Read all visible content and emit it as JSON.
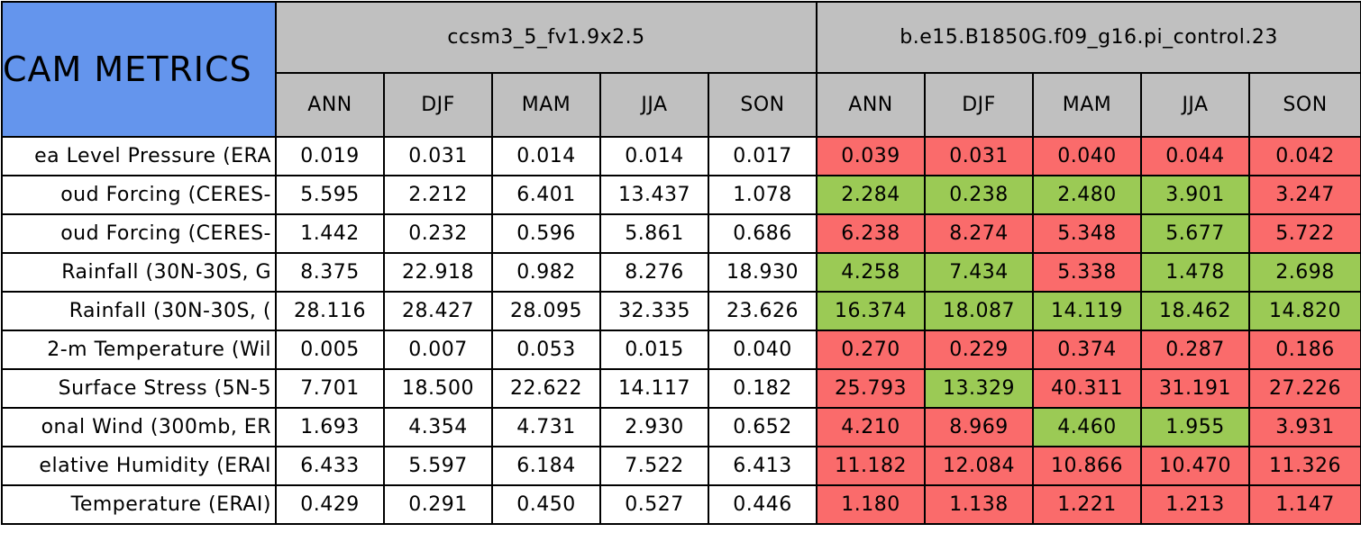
{
  "header": {
    "title": "CAM METRICS",
    "groups": [
      {
        "name": "ccsm3_5_fv1.9x2.5",
        "seasons": [
          "ANN",
          "DJF",
          "MAM",
          "JJA",
          "SON"
        ]
      },
      {
        "name": "b.e15.B1850G.f09_g16.pi_control.23",
        "seasons": [
          "ANN",
          "DJF",
          "MAM",
          "JJA",
          "SON"
        ]
      }
    ]
  },
  "table": {
    "rows": [
      {
        "label": "ea Level Pressure (ERA",
        "cells": [
          "0.019",
          "0.031",
          "0.014",
          "0.014",
          "0.017",
          "0.039",
          "0.031",
          "0.040",
          "0.044",
          "0.042"
        ],
        "colors": [
          "#fa6b6b",
          "#fa6b6b",
          "#fa6b6b",
          "#fa6b6b",
          "#fa6b6b"
        ]
      },
      {
        "label": "oud Forcing (CERES-",
        "cells": [
          "5.595",
          "2.212",
          "6.401",
          "13.437",
          "1.078",
          "2.284",
          "0.238",
          "2.480",
          "3.901",
          "3.247"
        ],
        "colors": [
          "#9bca55",
          "#9bca55",
          "#9bca55",
          "#9bca55",
          "#fa6b6b"
        ]
      },
      {
        "label": "oud Forcing (CERES-",
        "cells": [
          "1.442",
          "0.232",
          "0.596",
          "5.861",
          "0.686",
          "6.238",
          "8.274",
          "5.348",
          "5.677",
          "5.722"
        ],
        "colors": [
          "#fa6b6b",
          "#fa6b6b",
          "#fa6b6b",
          "#9bca55",
          "#fa6b6b"
        ]
      },
      {
        "label": "Rainfall (30N-30S, G",
        "cells": [
          "8.375",
          "22.918",
          "0.982",
          "8.276",
          "18.930",
          "4.258",
          "7.434",
          "5.338",
          "1.478",
          "2.698"
        ],
        "colors": [
          "#9bca55",
          "#9bca55",
          "#fa6b6b",
          "#9bca55",
          "#9bca55"
        ]
      },
      {
        "label": "Rainfall (30N-30S, (",
        "cells": [
          "28.116",
          "28.427",
          "28.095",
          "32.335",
          "23.626",
          "16.374",
          "18.087",
          "14.119",
          "18.462",
          "14.820"
        ],
        "colors": [
          "#9bca55",
          "#9bca55",
          "#9bca55",
          "#9bca55",
          "#9bca55"
        ]
      },
      {
        "label": "2-m Temperature (Wil",
        "cells": [
          "0.005",
          "0.007",
          "0.053",
          "0.015",
          "0.040",
          "0.270",
          "0.229",
          "0.374",
          "0.287",
          "0.186"
        ],
        "colors": [
          "#fa6b6b",
          "#fa6b6b",
          "#fa6b6b",
          "#fa6b6b",
          "#fa6b6b"
        ]
      },
      {
        "label": "Surface Stress (5N-5",
        "cells": [
          "7.701",
          "18.500",
          "22.622",
          "14.117",
          "0.182",
          "25.793",
          "13.329",
          "40.311",
          "31.191",
          "27.226"
        ],
        "colors": [
          "#fa6b6b",
          "#9bca55",
          "#fa6b6b",
          "#fa6b6b",
          "#fa6b6b"
        ]
      },
      {
        "label": "onal Wind (300mb, ER",
        "cells": [
          "1.693",
          "4.354",
          "4.731",
          "2.930",
          "0.652",
          "4.210",
          "8.969",
          "4.460",
          "1.955",
          "3.931"
        ],
        "colors": [
          "#fa6b6b",
          "#fa6b6b",
          "#9bca55",
          "#9bca55",
          "#fa6b6b"
        ]
      },
      {
        "label": "elative Humidity (ERAI",
        "cells": [
          "6.433",
          "5.597",
          "6.184",
          "7.522",
          "6.413",
          "11.182",
          "12.084",
          "10.866",
          "10.470",
          "11.326"
        ],
        "colors": [
          "#fa6b6b",
          "#fa6b6b",
          "#fa6b6b",
          "#fa6b6b",
          "#fa6b6b"
        ]
      },
      {
        "label": "Temperature (ERAI)",
        "cells": [
          "0.429",
          "0.291",
          "0.450",
          "0.527",
          "0.446",
          "1.180",
          "1.138",
          "1.221",
          "1.213",
          "1.147"
        ],
        "colors": [
          "#fa6b6b",
          "#fa6b6b",
          "#fa6b6b",
          "#fa6b6b",
          "#fa6b6b"
        ]
      }
    ]
  }
}
